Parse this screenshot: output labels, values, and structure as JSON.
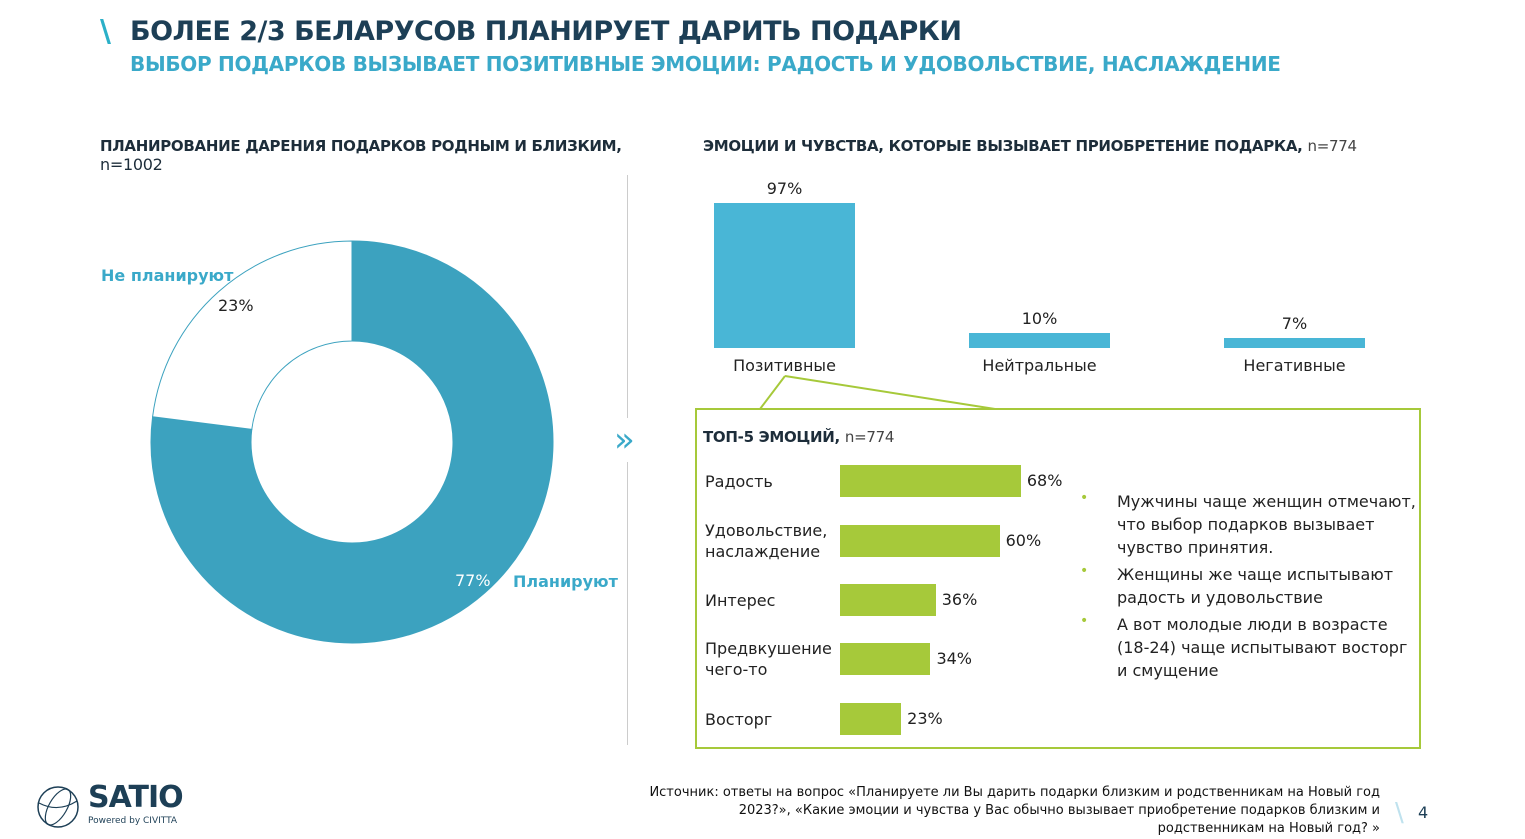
{
  "header": {
    "title": "БОЛЕЕ 2/3 БЕЛАРУСОВ ПЛАНИРУЕТ ДАРИТЬ ПОДАРКИ",
    "subtitle": "ВЫБОР ПОДАРКОВ ВЫЗЫВАЕТ ПОЗИТИВНЫЕ ЭМОЦИИ: РАДОСТЬ И УДОВОЛЬСТВИЕ, НАСЛАЖДЕНИЕ"
  },
  "chart_data": [
    {
      "type": "pie",
      "donut": true,
      "title": "ПЛАНИРОВАНИЕ ДАРЕНИЯ ПОДАРКОВ РОДНЫМ И БЛИЗКИМ,",
      "subtitle": "n=1002",
      "slices": [
        {
          "name": "Планируют",
          "value": 77,
          "label": "77%",
          "color": "#3ca2bf"
        },
        {
          "name": "Не планируют",
          "value": 23,
          "label": "23%",
          "color": "#ffffff"
        }
      ]
    },
    {
      "type": "bar",
      "title": "ЭМОЦИИ И ЧУВСТВА, КОТОРЫЕ ВЫЗЫВАЕТ ПРИОБРЕТЕНИЕ ПОДАРКА,",
      "subtitle": "n=774",
      "categories": [
        "Позитивные",
        "Нейтральные",
        "Негативные"
      ],
      "values": [
        97,
        10,
        7
      ],
      "labels": [
        "97%",
        "10%",
        "7%"
      ],
      "color": "#49b6d6"
    },
    {
      "type": "bar",
      "orientation": "horizontal",
      "title": "ТОП-5 ЭМОЦИЙ,",
      "subtitle": "n=774",
      "categories": [
        "Радость",
        "Удовольствие, наслаждение",
        "Интерес",
        "Предвкушение чего-то",
        "Восторг"
      ],
      "values": [
        68,
        60,
        36,
        34,
        23
      ],
      "labels": [
        "68%",
        "60%",
        "36%",
        "34%",
        "23%"
      ],
      "color": "#a6c93a"
    }
  ],
  "bullets": [
    "Мужчины чаще женщин отмечают, что выбор подарков вызывает чувство принятия.",
    "Женщины же чаще испытывают радость и удовольствие",
    "А вот молодые люди в возрасте (18-24) чаще испытывают восторг и смущение"
  ],
  "footer": {
    "source": "Источник: ответы на вопрос «Планируете ли Вы дарить подарки близким и родственникам на Новый год 2023?», «Какие эмоции и чувства у Вас обычно вызывает приобретение подарков близким и родственникам на Новый год? »",
    "page": "4",
    "logo": "SATIO",
    "logo_sub": "Powered by CIVITTA"
  }
}
